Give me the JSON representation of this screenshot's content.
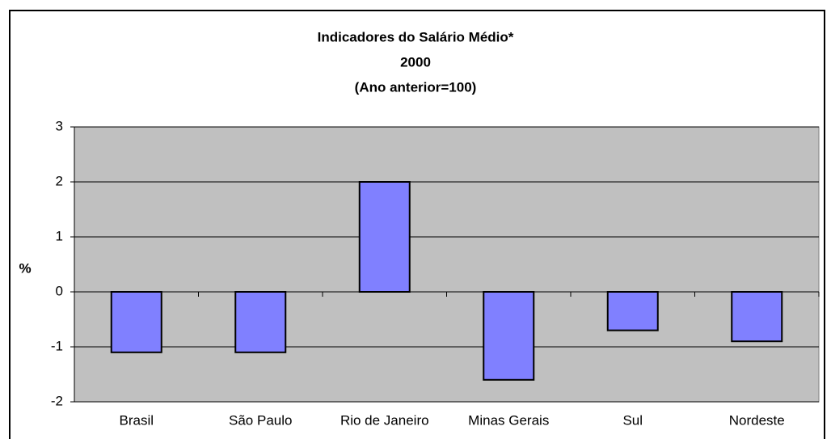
{
  "chart_data": {
    "type": "bar",
    "title": [
      "Indicadores do Salário Médio*",
      "2000",
      "(Ano anterior=100)"
    ],
    "y_label": "%",
    "categories": [
      "Brasil",
      "São Paulo",
      "Rio de Janeiro",
      "Minas Gerais",
      "Sul",
      "Nordeste"
    ],
    "values": [
      -1.1,
      -1.1,
      2.0,
      -1.6,
      -0.7,
      -0.9
    ],
    "color": "#8080ff",
    "ylim": [
      -2,
      3
    ],
    "yticks": [
      -2,
      -1,
      0,
      1,
      2,
      3
    ],
    "grid": true
  }
}
